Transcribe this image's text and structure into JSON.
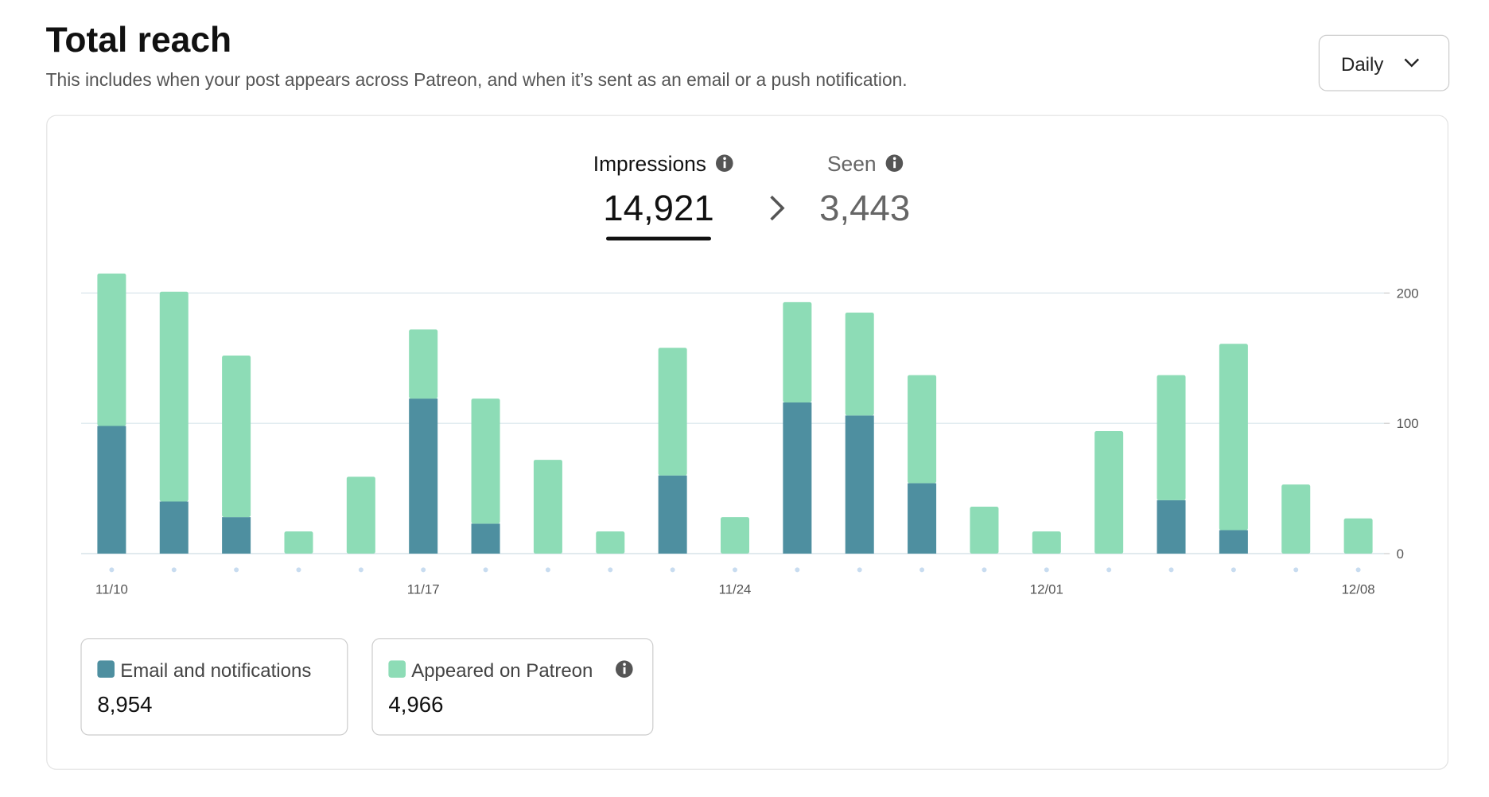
{
  "header": {
    "title": "Total reach",
    "subtitle": "This includes when your post appears across Patreon, and when it’s sent as an email or a push notification.",
    "dropdown": "Daily"
  },
  "metrics": {
    "impressions": {
      "label": "Impressions",
      "value": "14,921"
    },
    "seen": {
      "label": "Seen",
      "value": "3,443"
    }
  },
  "chart_data": {
    "type": "stacked-bar",
    "categories": [
      "11/10",
      null,
      null,
      null,
      null,
      "11/17",
      null,
      null,
      null,
      null,
      "11/24",
      null,
      null,
      null,
      null,
      "12/01",
      null,
      null,
      null,
      null,
      "12/08"
    ],
    "series": [
      {
        "name": "Email and notifications",
        "color": "#4e8fa0",
        "total": "8,954",
        "values": [
          98,
          40,
          28,
          0,
          0,
          119,
          23,
          0,
          0,
          60,
          0,
          116,
          106,
          54,
          0,
          0,
          0,
          41,
          18,
          0,
          0
        ]
      },
      {
        "name": "Appeared on Patreon",
        "color": "#8ddcb6",
        "total": "4,966",
        "values": [
          117,
          161,
          124,
          17,
          59,
          53,
          96,
          72,
          17,
          98,
          28,
          77,
          79,
          83,
          36,
          17,
          94,
          96,
          143,
          53,
          27
        ]
      }
    ],
    "ylim": [
      0,
      215
    ],
    "yticks": [
      0,
      100,
      200
    ],
    "grid": true
  }
}
